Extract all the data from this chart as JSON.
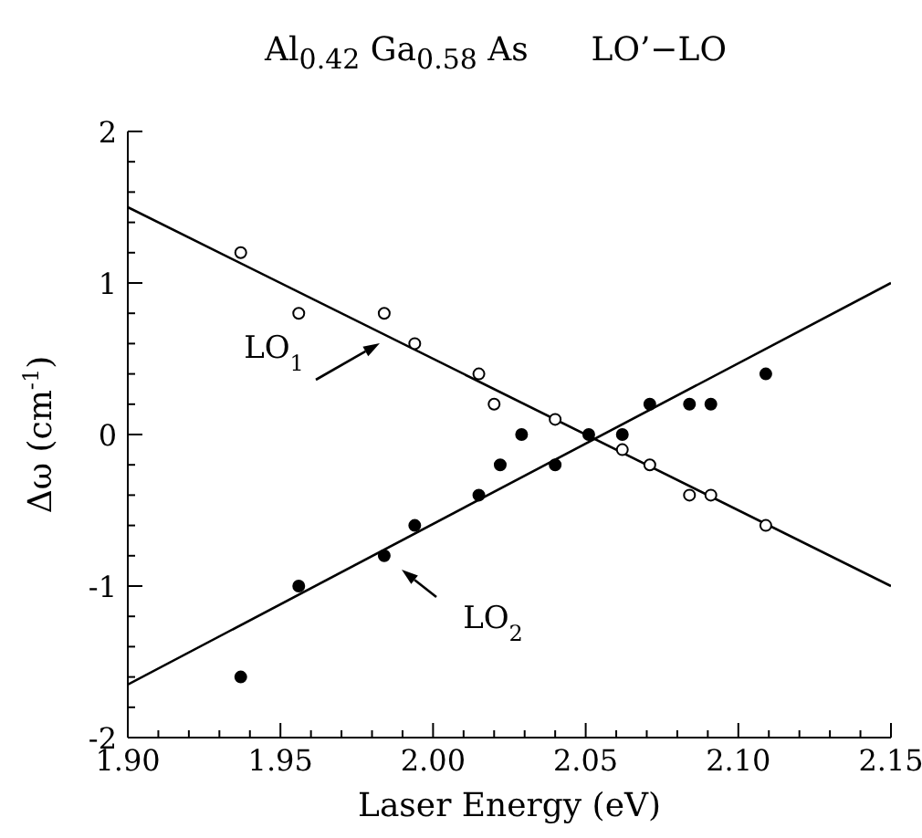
{
  "chart_data": {
    "type": "scatter",
    "title": "Al$_{0.42}$ Ga$_{0.58}$ As      LO’−LO",
    "xlabel": "Laser Energy   (eV)",
    "ylabel": "Δω  (cm$^{-1}$)",
    "xlim": [
      1.9,
      2.15
    ],
    "ylim": [
      -2,
      2
    ],
    "xticks": [
      {
        "value": 1.9,
        "label": "1.90"
      },
      {
        "value": 1.91,
        "label": null
      },
      {
        "value": 1.92,
        "label": null
      },
      {
        "value": 1.93,
        "label": null
      },
      {
        "value": 1.94,
        "label": null
      },
      {
        "value": 1.95,
        "label": "1.95"
      },
      {
        "value": 1.96,
        "label": null
      },
      {
        "value": 1.97,
        "label": null
      },
      {
        "value": 1.98,
        "label": null
      },
      {
        "value": 1.99,
        "label": null
      },
      {
        "value": 2.0,
        "label": "2.00"
      },
      {
        "value": 2.01,
        "label": null
      },
      {
        "value": 2.02,
        "label": null
      },
      {
        "value": 2.03,
        "label": null
      },
      {
        "value": 2.04,
        "label": null
      },
      {
        "value": 2.05,
        "label": "2.05"
      },
      {
        "value": 2.06,
        "label": null
      },
      {
        "value": 2.07,
        "label": null
      },
      {
        "value": 2.08,
        "label": null
      },
      {
        "value": 2.09,
        "label": null
      },
      {
        "value": 2.1,
        "label": "2.10"
      },
      {
        "value": 2.11,
        "label": null
      },
      {
        "value": 2.12,
        "label": null
      },
      {
        "value": 2.13,
        "label": null
      },
      {
        "value": 2.14,
        "label": null
      },
      {
        "value": 2.15,
        "label": "2.15"
      }
    ],
    "yticks": [
      -2,
      {
        "value": -1.8,
        "label": null
      },
      {
        "value": -1.6,
        "label": null
      },
      {
        "value": -1.4,
        "label": null
      },
      {
        "value": -1.2,
        "label": null
      },
      -1,
      {
        "value": -0.8,
        "label": null
      },
      {
        "value": -0.6,
        "label": null
      },
      {
        "value": -0.4,
        "label": null
      },
      {
        "value": -0.2,
        "label": null
      },
      0,
      {
        "value": 0.2,
        "label": null
      },
      {
        "value": 0.4,
        "label": null
      },
      {
        "value": 0.6,
        "label": null
      },
      {
        "value": 0.8,
        "label": null
      },
      1,
      {
        "value": 1.2,
        "label": null
      },
      {
        "value": 1.4,
        "label": null
      },
      {
        "value": 1.6,
        "label": null
      },
      {
        "value": 1.8,
        "label": null
      },
      2
    ],
    "marker": "circle",
    "series": [
      {
        "color": "#000000",
        "x": [
          1.937,
          1.956,
          1.984,
          1.994,
          2.015,
          2.02,
          2.04,
          2.062,
          2.071,
          2.084,
          2.091,
          2.109
        ],
        "values": [
          1.2,
          0.8,
          0.8,
          0.6,
          0.4,
          0.2,
          0.1,
          -0.1,
          -0.2,
          -0.4,
          -0.4,
          -0.6
        ]
      },
      {
        "color": "#000000",
        "x": [
          1.937,
          1.956,
          1.984,
          1.994,
          2.015,
          2.022,
          2.029,
          2.04,
          2.051,
          2.062,
          2.071,
          2.084,
          2.091,
          2.109
        ],
        "values": [
          -1.6,
          -1.0,
          -0.8,
          -0.6,
          -0.4,
          -0.2,
          0.0,
          -0.2,
          0.0,
          0.0,
          0.2,
          0.2,
          0.2,
          0.4
        ]
      },
      {
        "type": "line",
        "color": "#000000",
        "marker": "none",
        "x": [
          1.9,
          2.15
        ],
        "values": [
          1.5,
          -1.0
        ]
      },
      {
        "type": "line",
        "color": "#000000",
        "marker": "none",
        "x": [
          1.9,
          2.15
        ],
        "values": [
          -1.65,
          1.0
        ]
      }
    ],
    "annotations": [
      "LO$_{1}$",
      "LO$_{2}$"
    ]
  }
}
